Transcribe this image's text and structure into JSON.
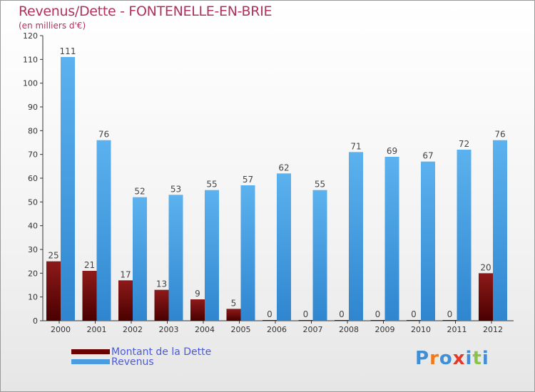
{
  "title": "Revenus/Dette - FONTENELLE-EN-BRIE",
  "subtitle": "(en milliers d'€)",
  "colors": {
    "debt": "#7a0c0c",
    "revenue": "#4aa3e6",
    "title": "#b03060",
    "legend_text": "#4a5adc"
  },
  "legend": [
    {
      "label": "Montant de la Dette",
      "color": "#6b0000"
    },
    {
      "label": "Revenus",
      "color": "#4a9be0"
    }
  ],
  "logo": {
    "text": "Proxiti",
    "letter_colors": [
      "#3f8fd6",
      "#f07a1a",
      "#3f8fd6",
      "#e23a2a",
      "#3f8fd6",
      "#8bc34a",
      "#3f8fd6"
    ]
  },
  "chart_data": {
    "type": "bar",
    "title": "Revenus/Dette - FONTENELLE-EN-BRIE",
    "subtitle": "(en milliers d'€)",
    "categories": [
      "2000",
      "2001",
      "2002",
      "2003",
      "2004",
      "2005",
      "2006",
      "2007",
      "2008",
      "2009",
      "2010",
      "2011",
      "2012"
    ],
    "series": [
      {
        "name": "Montant de la Dette",
        "values": [
          25,
          21,
          17,
          13,
          9,
          5,
          0,
          0,
          0,
          0,
          0,
          0,
          20
        ]
      },
      {
        "name": "Revenus",
        "values": [
          111,
          76,
          52,
          53,
          55,
          57,
          62,
          55,
          71,
          69,
          67,
          72,
          76
        ]
      }
    ],
    "ylim": [
      0,
      120
    ],
    "yticks": [
      0,
      10,
      20,
      30,
      40,
      50,
      60,
      70,
      80,
      90,
      100,
      110,
      120
    ],
    "grid": false,
    "legend_position": "bottom-left",
    "xlabel": "",
    "ylabel": ""
  }
}
